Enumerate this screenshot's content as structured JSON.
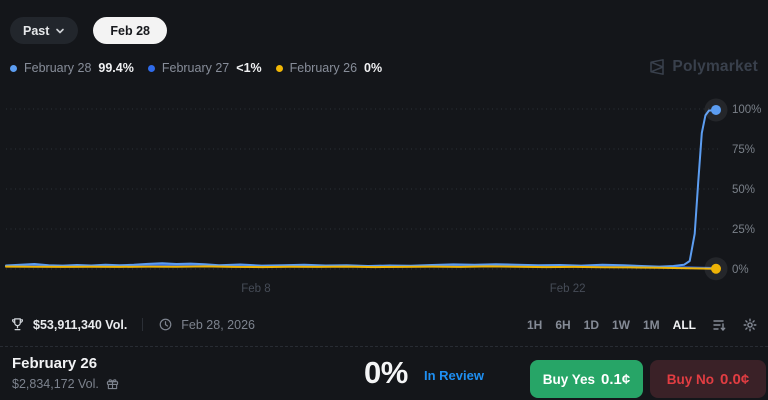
{
  "header": {
    "past_label": "Past",
    "selected_tab": "Feb 28"
  },
  "legend": [
    {
      "label": "February 28",
      "value": "99.4%",
      "color": "#5c9df1"
    },
    {
      "label": "February 27",
      "value": "<1%",
      "color": "#2f6bea"
    },
    {
      "label": "February 26",
      "value": "0%",
      "color": "#f2b705"
    }
  ],
  "brand": {
    "name": "Polymarket"
  },
  "chart_data": {
    "type": "line",
    "title": "",
    "xlabel": "",
    "ylabel": "",
    "ylim": [
      0,
      100
    ],
    "grid": "dotted-horizontal",
    "yticks": [
      0,
      25,
      50,
      75,
      100
    ],
    "ytick_labels": [
      "0%",
      "25%",
      "50%",
      "75%",
      "100%"
    ],
    "xticks": [
      {
        "label": "Feb 8",
        "pos": 0.352
      },
      {
        "label": "Feb 22",
        "pos": 0.791
      }
    ],
    "series": [
      {
        "name": "February 27",
        "color": "#2f6bea",
        "end_value": "<1%",
        "dot": false,
        "points": [
          [
            0,
            1.9
          ],
          [
            0.03,
            2.2
          ],
          [
            0.06,
            1.8
          ],
          [
            0.09,
            2.0
          ],
          [
            0.12,
            1.7
          ],
          [
            0.15,
            2.1
          ],
          [
            0.18,
            1.9
          ],
          [
            0.21,
            2.6
          ],
          [
            0.24,
            2.3
          ],
          [
            0.27,
            2.7
          ],
          [
            0.3,
            2.0
          ],
          [
            0.33,
            2.3
          ],
          [
            0.36,
            1.8
          ],
          [
            0.39,
            2.0
          ],
          [
            0.42,
            2.2
          ],
          [
            0.45,
            1.9
          ],
          [
            0.48,
            2.1
          ],
          [
            0.51,
            1.7
          ],
          [
            0.54,
            1.9
          ],
          [
            0.57,
            1.7
          ],
          [
            0.6,
            2.1
          ],
          [
            0.63,
            2.4
          ],
          [
            0.66,
            2.2
          ],
          [
            0.69,
            2.5
          ],
          [
            0.72,
            2.2
          ],
          [
            0.75,
            1.9
          ],
          [
            0.78,
            2.1
          ],
          [
            0.81,
            1.8
          ],
          [
            0.84,
            2.2
          ],
          [
            0.87,
            1.9
          ],
          [
            0.9,
            1.5
          ],
          [
            0.93,
            1.2
          ],
          [
            0.96,
            1.0
          ],
          [
            0.98,
            0.8
          ],
          [
            1,
            0.6
          ]
        ]
      },
      {
        "name": "February 28",
        "color": "#5c9df1",
        "end_value": "99.4%",
        "dot": true,
        "points": [
          [
            0,
            2.2
          ],
          [
            0.02,
            2.6
          ],
          [
            0.04,
            3.1
          ],
          [
            0.06,
            2.3
          ],
          [
            0.08,
            2.1
          ],
          [
            0.1,
            2.5
          ],
          [
            0.12,
            2.2
          ],
          [
            0.14,
            2.7
          ],
          [
            0.16,
            2.3
          ],
          [
            0.18,
            2.6
          ],
          [
            0.2,
            3.2
          ],
          [
            0.22,
            3.6
          ],
          [
            0.24,
            3.1
          ],
          [
            0.26,
            3.4
          ],
          [
            0.28,
            3.0
          ],
          [
            0.3,
            2.4
          ],
          [
            0.33,
            2.8
          ],
          [
            0.36,
            2.1
          ],
          [
            0.39,
            2.4
          ],
          [
            0.42,
            2.6
          ],
          [
            0.45,
            2.2
          ],
          [
            0.48,
            2.4
          ],
          [
            0.51,
            1.9
          ],
          [
            0.54,
            2.2
          ],
          [
            0.57,
            2.0
          ],
          [
            0.6,
            2.5
          ],
          [
            0.63,
            2.9
          ],
          [
            0.66,
            2.6
          ],
          [
            0.69,
            3.0
          ],
          [
            0.72,
            2.7
          ],
          [
            0.75,
            2.3
          ],
          [
            0.78,
            2.5
          ],
          [
            0.81,
            2.1
          ],
          [
            0.84,
            2.6
          ],
          [
            0.87,
            2.3
          ],
          [
            0.9,
            1.8
          ],
          [
            0.92,
            1.5
          ],
          [
            0.94,
            1.9
          ],
          [
            0.955,
            2.6
          ],
          [
            0.963,
            5
          ],
          [
            0.97,
            22
          ],
          [
            0.975,
            55
          ],
          [
            0.98,
            85
          ],
          [
            0.985,
            96
          ],
          [
            0.99,
            99
          ],
          [
            1,
            99.4
          ]
        ]
      },
      {
        "name": "February 26",
        "color": "#eeb306",
        "end_value": "0%",
        "dot": true,
        "points": [
          [
            0,
            1.5
          ],
          [
            0.04,
            1.4
          ],
          [
            0.08,
            1.3
          ],
          [
            0.12,
            1.4
          ],
          [
            0.16,
            1.3
          ],
          [
            0.2,
            1.5
          ],
          [
            0.24,
            1.4
          ],
          [
            0.28,
            1.6
          ],
          [
            0.32,
            1.3
          ],
          [
            0.36,
            1.2
          ],
          [
            0.4,
            1.4
          ],
          [
            0.44,
            1.3
          ],
          [
            0.48,
            1.5
          ],
          [
            0.52,
            1.2
          ],
          [
            0.56,
            1.3
          ],
          [
            0.6,
            1.5
          ],
          [
            0.64,
            1.3
          ],
          [
            0.68,
            1.6
          ],
          [
            0.72,
            1.4
          ],
          [
            0.76,
            1.2
          ],
          [
            0.8,
            1.3
          ],
          [
            0.84,
            1.1
          ],
          [
            0.88,
            1.0
          ],
          [
            0.92,
            0.8
          ],
          [
            0.96,
            0.5
          ],
          [
            1,
            0.15
          ]
        ]
      }
    ]
  },
  "toolbar": {
    "volume": "$53,911,340 Vol.",
    "date": "Feb 28, 2026",
    "ranges": [
      "1H",
      "6H",
      "1D",
      "1W",
      "1M",
      "ALL"
    ],
    "selected_range": "ALL"
  },
  "outcome": {
    "title": "February 26",
    "volume": "$2,834,172 Vol.",
    "chance": "0%",
    "status": "In Review",
    "buy_yes_label": "Buy Yes",
    "buy_yes_price": "0.1¢",
    "buy_no_label": "Buy No",
    "buy_no_price": "0.0¢"
  },
  "colors": {
    "background": "#14161a",
    "accent_blue_light": "#5c9df1",
    "accent_blue": "#2f6bea",
    "accent_yellow": "#f2b705",
    "buy_yes_green": "#27a567",
    "buy_no_red_bg": "#3a2127",
    "buy_no_red_text": "#e23d42",
    "status_blue": "#1e8ff2"
  }
}
